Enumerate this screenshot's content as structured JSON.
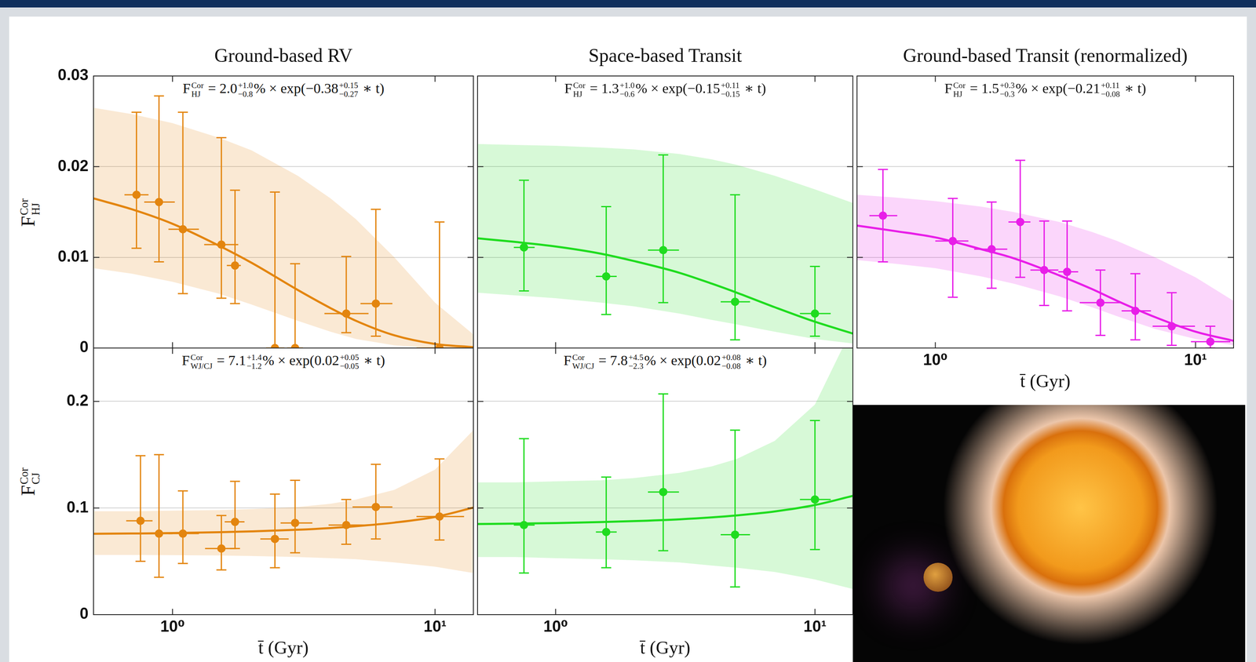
{
  "chart_data": [
    {
      "type": "scatter",
      "title": "Ground-based RV",
      "annotation": [
        {
          "text": "F",
          "sup": "Cor",
          "sub": "HJ"
        },
        {
          "text": " = 2.0",
          "sup": "+1.0",
          "sub": "−0.8"
        },
        {
          "text": "% × exp(−0.38",
          "sup": "+0.15",
          "sub": "−0.27"
        },
        {
          "text": " ∗ t)"
        }
      ],
      "ylabel": {
        "text": "F",
        "sup": "Cor",
        "sub": "HJ"
      },
      "log": "x",
      "grid": true,
      "tick_labels": "y",
      "color": "#e3850f",
      "xlim": [
        0.5,
        14
      ],
      "xticks": [
        {
          "value": 1,
          "label": "10⁰"
        },
        {
          "value": 10,
          "label": "10¹"
        }
      ],
      "ylim": [
        0,
        0.03
      ],
      "yticks": [
        0,
        0.01,
        0.02,
        0.03
      ],
      "series": [
        {
          "type": "band",
          "x": [
            0.5,
            0.7,
            1,
            1.5,
            2,
            3,
            4,
            5,
            7,
            10,
            14
          ],
          "low": [
            0.0088,
            0.0082,
            0.0073,
            0.006,
            0.0048,
            0.003,
            0.0018,
            0.001,
            0.0003,
            0,
            0
          ],
          "high": [
            0.0265,
            0.0258,
            0.0248,
            0.0232,
            0.0218,
            0.019,
            0.0165,
            0.0142,
            0.01,
            0.005,
            0.0015
          ]
        },
        {
          "type": "line",
          "line_style": "solid",
          "x": [
            0.5,
            0.7,
            1,
            1.5,
            2,
            3,
            4,
            5,
            7,
            10,
            14
          ],
          "values": [
            0.0165,
            0.0153,
            0.0137,
            0.0113,
            0.0094,
            0.0064,
            0.0044,
            0.003,
            0.0014,
            0.00045,
            0.0001
          ]
        },
        {
          "type": "scatter",
          "marker": "circle",
          "x": [
            0.729,
            0.888,
            1.095,
            1.535,
            1.73,
            2.455,
            2.93,
            4.59,
            5.95,
            10.4
          ],
          "values": [
            0.0169,
            0.0161,
            0.0131,
            0.0114,
            0.0091,
            0,
            0,
            0.0038,
            0.0049,
            0
          ],
          "y_low": [
            0.011,
            0.0095,
            0.006,
            0.0055,
            0.0049,
            0,
            0,
            0.0017,
            0.0013,
            0
          ],
          "y_high": [
            0.026,
            0.0278,
            0.026,
            0.0232,
            0.0174,
            0.0172,
            0.0093,
            0.0101,
            0.0153,
            0.0139
          ],
          "x_low": [
            0.656,
            0.78,
            0.965,
            1.32,
            1.61,
            2.27,
            2.73,
            3.79,
            5.2,
            8.5
          ],
          "x_high": [
            0.81,
            1.02,
            1.26,
            1.78,
            1.82,
            2.67,
            3.14,
            5.58,
            6.88,
            12.9
          ]
        }
      ]
    },
    {
      "type": "scatter",
      "title": "Space-based Transit",
      "annotation": [
        {
          "text": "F",
          "sup": "Cor",
          "sub": "HJ"
        },
        {
          "text": " = 1.3",
          "sup": "+1.0",
          "sub": "−0.6"
        },
        {
          "text": "% × exp(−0.15",
          "sup": "+0.11",
          "sub": "−0.15"
        },
        {
          "text": " ∗ t)"
        }
      ],
      "log": "x",
      "grid": true,
      "tick_labels": false,
      "color": "#1fdc1f",
      "xlim": [
        0.5,
        14
      ],
      "xticks": [
        {
          "value": 1,
          "label": "10⁰"
        },
        {
          "value": 10,
          "label": "10¹"
        }
      ],
      "ylim": [
        0,
        0.03
      ],
      "yticks": [
        0,
        0.01,
        0.02,
        0.03
      ],
      "series": [
        {
          "type": "band",
          "x": [
            0.5,
            0.7,
            1,
            1.5,
            2,
            3,
            4,
            5,
            7,
            10,
            14
          ],
          "low": [
            0.0061,
            0.0058,
            0.0055,
            0.005,
            0.0046,
            0.0038,
            0.0031,
            0.0026,
            0.0018,
            0.001,
            0.0005
          ],
          "high": [
            0.0225,
            0.0224,
            0.0223,
            0.0221,
            0.0219,
            0.0214,
            0.0208,
            0.0202,
            0.019,
            0.0175,
            0.016
          ]
        },
        {
          "type": "line",
          "line_style": "solid",
          "x": [
            0.5,
            0.7,
            1,
            1.5,
            2,
            3,
            4,
            5,
            7,
            10,
            14
          ],
          "values": [
            0.0121,
            0.0117,
            0.0112,
            0.0104,
            0.0096,
            0.0083,
            0.0071,
            0.0061,
            0.0045,
            0.0029,
            0.0016
          ]
        },
        {
          "type": "scatter",
          "marker": "circle",
          "x": [
            0.755,
            1.567,
            2.6,
            4.92,
            10
          ],
          "values": [
            0.0111,
            0.0079,
            0.0108,
            0.0051,
            0.0038
          ],
          "y_low": [
            0.0063,
            0.0037,
            0.005,
            0.0009,
            0.0013
          ],
          "y_high": [
            0.0185,
            0.0156,
            0.0213,
            0.0169,
            0.009
          ],
          "x_low": [
            0.69,
            1.43,
            2.27,
            4.33,
            8.75
          ],
          "x_high": [
            0.83,
            1.72,
            2.99,
            5.62,
            11.5
          ]
        }
      ]
    },
    {
      "type": "scatter",
      "title": "Ground-based Transit (renormalized)",
      "annotation": [
        {
          "text": "F",
          "sup": "Cor",
          "sub": "HJ"
        },
        {
          "text": " = 1.5",
          "sup": "+0.3",
          "sub": "−0.3"
        },
        {
          "text": "% × exp(−0.21",
          "sup": "+0.11",
          "sub": "−0.08"
        },
        {
          "text": " ∗ t)"
        }
      ],
      "xlabel": "t̄ (Gyr)",
      "log": "x",
      "grid": true,
      "tick_labels": "x",
      "color": "#e81ee8",
      "xlim": [
        0.5,
        14
      ],
      "xticks": [
        {
          "value": 1,
          "label": "10⁰"
        },
        {
          "value": 10,
          "label": "10¹"
        }
      ],
      "ylim": [
        0,
        0.03
      ],
      "yticks": [
        0,
        0.01,
        0.02,
        0.03
      ],
      "series": [
        {
          "type": "band",
          "x": [
            0.5,
            0.7,
            1,
            1.5,
            2,
            3,
            4,
            5,
            7,
            10,
            14
          ],
          "low": [
            0.0097,
            0.0093,
            0.0088,
            0.0079,
            0.0071,
            0.0057,
            0.0045,
            0.0035,
            0.0021,
            0.001,
            0.0003
          ],
          "high": [
            0.0169,
            0.0166,
            0.0162,
            0.0156,
            0.015,
            0.0139,
            0.0128,
            0.0118,
            0.01,
            0.0078,
            0.0052
          ]
        },
        {
          "type": "line",
          "line_style": "solid",
          "x": [
            0.5,
            0.7,
            1,
            1.5,
            2,
            3,
            4,
            5,
            7,
            10,
            14
          ],
          "values": [
            0.0135,
            0.0129,
            0.0122,
            0.0109,
            0.0099,
            0.008,
            0.0065,
            0.0052,
            0.0034,
            0.0018,
            0.0008
          ]
        },
        {
          "type": "scatter",
          "marker": "circle",
          "x": [
            0.629,
            1.167,
            1.646,
            2.12,
            2.62,
            3.21,
            4.31,
            5.87,
            8.1,
            11.4
          ],
          "values": [
            0.0146,
            0.0118,
            0.0109,
            0.0139,
            0.0086,
            0.0084,
            0.005,
            0.0041,
            0.0024,
            0.0007
          ],
          "y_low": [
            0.0095,
            0.0056,
            0.0066,
            0.0078,
            0.0047,
            0.0041,
            0.0014,
            0.0009,
            0.0003,
            0
          ],
          "y_high": [
            0.0197,
            0.0165,
            0.0161,
            0.0207,
            0.014,
            0.014,
            0.0086,
            0.0082,
            0.0061,
            0.0024
          ],
          "x_low": [
            0.558,
            1.0,
            1.41,
            1.91,
            2.32,
            2.97,
            3.59,
            5.2,
            6.84,
            9.6
          ],
          "x_high": [
            0.714,
            1.34,
            1.89,
            2.32,
            2.97,
            3.54,
            5.2,
            6.74,
            9.95,
            13.6
          ]
        }
      ]
    },
    {
      "type": "scatter",
      "annotation": [
        {
          "text": "F",
          "sup": "Cor",
          "sub": "WJ/CJ"
        },
        {
          "text": " = 7.1",
          "sup": "+1.4",
          "sub": "−1.2"
        },
        {
          "text": "% × exp(0.02",
          "sup": "+0.05",
          "sub": "−0.05"
        },
        {
          "text": " ∗ t)"
        }
      ],
      "ylabel": {
        "text": "F",
        "sup": "Cor",
        "sub": "CJ"
      },
      "xlabel": "t̄ (Gyr)",
      "log": "x",
      "grid": true,
      "color": "#e3850f",
      "xlim": [
        0.5,
        14
      ],
      "xticks": [
        {
          "value": 1,
          "label": "10⁰"
        },
        {
          "value": 10,
          "label": "10¹"
        }
      ],
      "ylim": [
        0,
        0.25
      ],
      "yticks": [
        0,
        0.1,
        0.2
      ],
      "series": [
        {
          "type": "band",
          "x": [
            0.5,
            0.7,
            1,
            1.5,
            2,
            3,
            4,
            5,
            7,
            10,
            14
          ],
          "low": [
            0.056,
            0.056,
            0.0558,
            0.0555,
            0.055,
            0.054,
            0.053,
            0.052,
            0.049,
            0.045,
            0.039
          ],
          "high": [
            0.097,
            0.097,
            0.0975,
            0.098,
            0.099,
            0.101,
            0.104,
            0.108,
            0.117,
            0.136,
            0.173
          ]
        },
        {
          "type": "line",
          "line_style": "solid",
          "x": [
            0.5,
            0.7,
            1,
            1.5,
            2,
            3,
            4,
            5,
            7,
            10,
            14
          ],
          "values": [
            0.0758,
            0.0761,
            0.0765,
            0.0773,
            0.0781,
            0.0796,
            0.0812,
            0.0829,
            0.0863,
            0.0916,
            0.1004
          ]
        },
        {
          "type": "scatter",
          "marker": "circle",
          "x": [
            0.755,
            0.888,
            1.095,
            1.535,
            1.73,
            2.455,
            2.93,
            4.59,
            5.95,
            10.4
          ],
          "values": [
            0.088,
            0.076,
            0.076,
            0.062,
            0.087,
            0.071,
            0.086,
            0.084,
            0.101,
            0.092
          ],
          "y_low": [
            0.05,
            0.035,
            0.048,
            0.042,
            0.062,
            0.044,
            0.058,
            0.066,
            0.071,
            0.07
          ],
          "y_high": [
            0.149,
            0.15,
            0.116,
            0.093,
            0.125,
            0.113,
            0.126,
            0.108,
            0.141,
            0.146
          ],
          "x_low": [
            0.666,
            0.788,
            0.965,
            1.33,
            1.58,
            2.16,
            2.58,
            3.93,
            4.85,
            8.5
          ],
          "x_high": [
            0.839,
            1.0,
            1.26,
            1.75,
            1.88,
            2.77,
            3.41,
            5.58,
            6.88,
            12.9
          ]
        }
      ]
    },
    {
      "type": "scatter",
      "annotation": [
        {
          "text": "F",
          "sup": "Cor",
          "sub": "WJ/CJ"
        },
        {
          "text": " = 7.8",
          "sup": "+4.5",
          "sub": "−2.3"
        },
        {
          "text": "% × exp(0.02",
          "sup": "+0.08",
          "sub": "−0.08"
        },
        {
          "text": " ∗ t)"
        }
      ],
      "xlabel": "t̄ (Gyr)",
      "log": "x",
      "grid": true,
      "tick_labels": "x",
      "color": "#1fdc1f",
      "xlim": [
        0.5,
        14
      ],
      "xticks": [
        {
          "value": 1,
          "label": "10⁰"
        },
        {
          "value": 10,
          "label": "10¹"
        }
      ],
      "ylim": [
        0,
        0.25
      ],
      "yticks": [
        0,
        0.1,
        0.2
      ],
      "series": [
        {
          "type": "band",
          "x": [
            0.5,
            0.7,
            1,
            1.5,
            2,
            3,
            4,
            5,
            7,
            10,
            14
          ],
          "low": [
            0.054,
            0.054,
            0.053,
            0.052,
            0.051,
            0.049,
            0.046,
            0.044,
            0.04,
            0.033,
            0.024
          ],
          "high": [
            0.124,
            0.124,
            0.125,
            0.126,
            0.128,
            0.133,
            0.139,
            0.146,
            0.163,
            0.197,
            0.27
          ]
        },
        {
          "type": "line",
          "line_style": "solid",
          "x": [
            0.5,
            0.7,
            1,
            1.5,
            2,
            3,
            4,
            5,
            7,
            10,
            14
          ],
          "values": [
            0.085,
            0.0854,
            0.0859,
            0.0868,
            0.0877,
            0.0894,
            0.0912,
            0.0931,
            0.0968,
            0.1028,
            0.1114
          ]
        },
        {
          "type": "scatter",
          "marker": "circle",
          "x": [
            0.755,
            1.567,
            2.6,
            4.92,
            10
          ],
          "values": [
            0.084,
            0.0775,
            0.115,
            0.075,
            0.108
          ],
          "y_low": [
            0.039,
            0.044,
            0.06,
            0.026,
            0.061
          ],
          "y_high": [
            0.165,
            0.129,
            0.207,
            0.173,
            0.182
          ],
          "x_low": [
            0.69,
            1.43,
            2.27,
            4.33,
            8.75
          ],
          "x_high": [
            0.83,
            1.72,
            2.99,
            5.62,
            11.5
          ]
        }
      ]
    }
  ]
}
